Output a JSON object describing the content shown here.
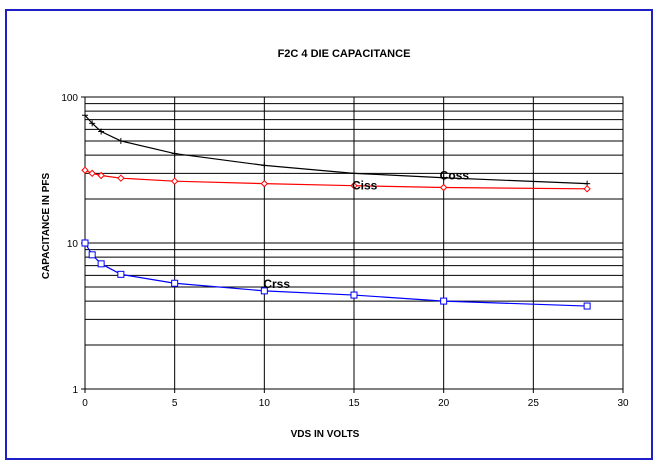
{
  "chart_data": {
    "type": "line",
    "title": "F2C  4 DIE CAPACITANCE",
    "xlabel": "VDS IN VOLTS",
    "ylabel": "CAPACITANCE IN PFS",
    "xlim": [
      0,
      30
    ],
    "ylim": [
      1,
      100
    ],
    "y_scale": "log",
    "grid": true,
    "x_ticks": [
      "0",
      "5",
      "10",
      "15",
      "20",
      "25",
      "30"
    ],
    "y_ticks": [
      "1",
      "10",
      "100"
    ],
    "series": [
      {
        "name": "Coss",
        "color": "#000000",
        "marker": "plus",
        "x": [
          0,
          0.4,
          0.9,
          2,
          5,
          10,
          15,
          20,
          28
        ],
        "y": [
          75,
          66,
          58,
          50,
          41,
          34,
          30,
          28,
          25.5
        ]
      },
      {
        "name": "Ciss",
        "color": "#ff0000",
        "marker": "diamond",
        "x": [
          0,
          0.4,
          0.9,
          2,
          5,
          10,
          15,
          20,
          28
        ],
        "y": [
          31.5,
          30,
          29,
          27.8,
          26.5,
          25.5,
          24.7,
          24,
          23.5
        ]
      },
      {
        "name": "Crss",
        "color": "#0000ff",
        "marker": "square",
        "x": [
          0,
          0.4,
          0.9,
          2,
          5,
          10,
          15,
          20,
          28
        ],
        "y": [
          10,
          8.3,
          7.2,
          6.1,
          5.3,
          4.7,
          4.4,
          4.0,
          3.7
        ]
      }
    ]
  }
}
